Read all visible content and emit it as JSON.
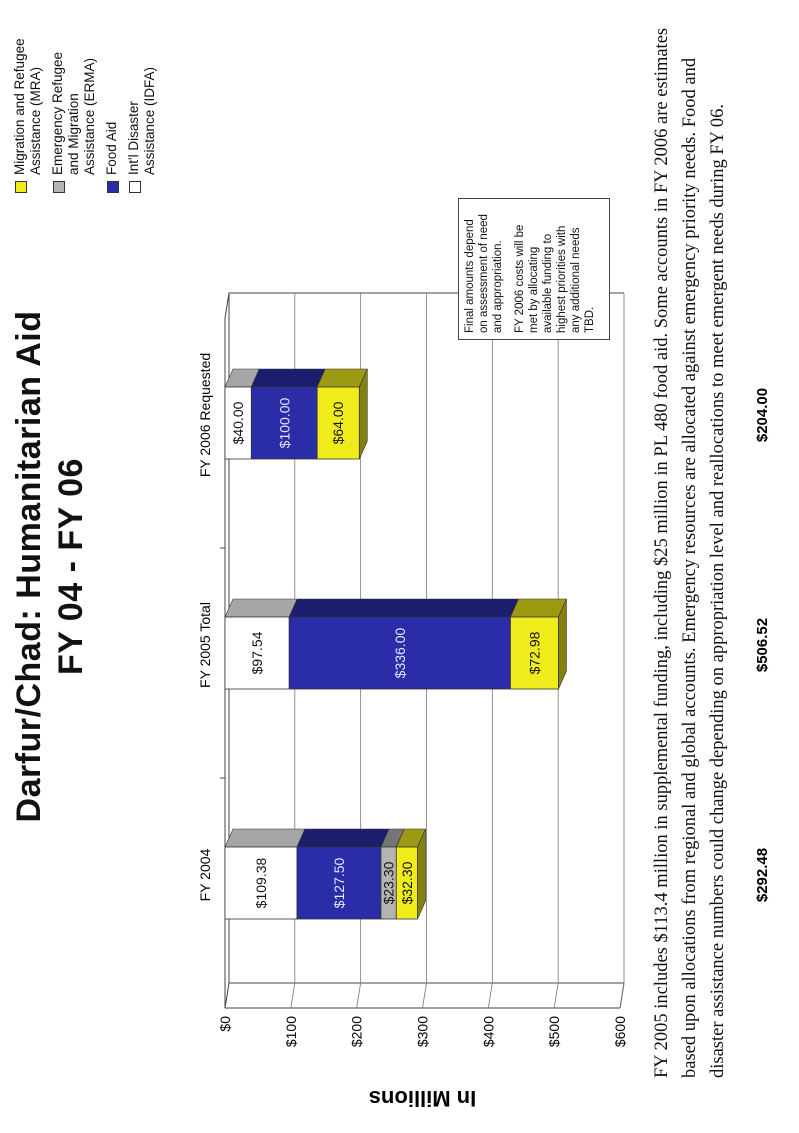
{
  "title": "Darfur/Chad: Humanitarian Aid",
  "subtitle": "FY 04 - FY 06",
  "chart_data": {
    "type": "bar",
    "stacked": true,
    "categories": [
      "FY 2004",
      "FY 2005 Total",
      "FY 2006 Requested"
    ],
    "totals": [
      "$292.48",
      "$506.52",
      "$204.00"
    ],
    "ylabel": "In Millions",
    "ylim": [
      0,
      600
    ],
    "yticks": [
      "$0",
      "$100",
      "$200",
      "$300",
      "$400",
      "$500",
      "$600"
    ],
    "grid": true,
    "legend_position": "right",
    "series": [
      {
        "name": "Int'l Disaster Assistance (IDFA)",
        "color": "#ffffff",
        "values": [
          109.38,
          97.54,
          40.0
        ],
        "labels": [
          "$109.38",
          "$97.54",
          "$40.00"
        ]
      },
      {
        "name": "Food Aid",
        "color": "#2b2ca8",
        "values": [
          127.5,
          336.0,
          100.0
        ],
        "labels": [
          "$127.50",
          "$336.00",
          "$100.00"
        ]
      },
      {
        "name": "Emergency Refugee and Migration Assistance (ERMA)",
        "color": "#b4b4b4",
        "values": [
          23.3,
          0,
          0
        ],
        "labels": [
          "$23.30",
          "",
          ""
        ]
      },
      {
        "name": "Migration and Refugee Assistance (MRA)",
        "color": "#f0ec1c",
        "values": [
          32.3,
          72.98,
          64.0
        ],
        "labels": [
          "$32.30",
          "$72.98",
          "$64.00"
        ]
      }
    ]
  },
  "legend": [
    {
      "label": "Migration and Refugee\nAssistance (MRA)",
      "color": "#f0ec1c"
    },
    {
      "label": "Emergency Refugee\nand Migration\nAssistance (ERMA)",
      "color": "#b4b4b4"
    },
    {
      "label": "Food Aid",
      "color": "#2b2ca8"
    },
    {
      "label": "Int'l Disaster\nAssistance (IDFA)",
      "color": "#ffffff"
    }
  ],
  "note": [
    "Final amounts depend on assessment of need and appropriation.",
    "FY 2006 costs will be met by allocating available funding to highest priorities with any additional needs TBD."
  ],
  "footnote": "FY 2005 includes $113.4 million in supplemental funding, including $25 million in PL 480 food aid. Some accounts in FY 2006 are estimates based upon allocations from regional and global accounts. Emergency resources are allocated against emergency priority needs. Food and disaster assistance numbers could change depending on appropriation level and reallocations to meet emergent needs during FY 06."
}
